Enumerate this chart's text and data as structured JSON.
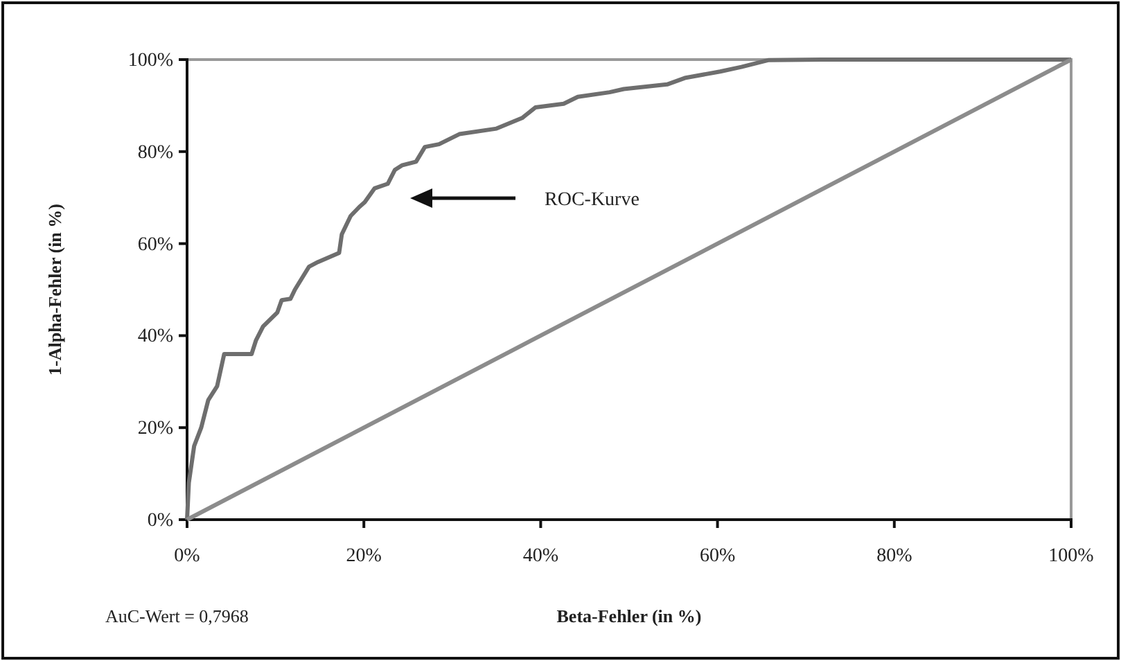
{
  "chart_data": {
    "type": "line",
    "xlabel": "Beta-Fehler (in %)",
    "ylabel": "1-Alpha-Fehler (in %)",
    "xlim": [
      0,
      100
    ],
    "ylim": [
      0,
      100
    ],
    "xticks": [
      {
        "value": 0,
        "label": "0%"
      },
      {
        "value": 20,
        "label": "20%"
      },
      {
        "value": 40,
        "label": "40%"
      },
      {
        "value": 60,
        "label": "60%"
      },
      {
        "value": 80,
        "label": "80%"
      },
      {
        "value": 100,
        "label": "100%"
      }
    ],
    "yticks": [
      {
        "value": 0,
        "label": "0%"
      },
      {
        "value": 20,
        "label": "20%"
      },
      {
        "value": 40,
        "label": "40%"
      },
      {
        "value": 60,
        "label": "60%"
      },
      {
        "value": 80,
        "label": "80%"
      },
      {
        "value": 100,
        "label": "100%"
      }
    ],
    "grid": false,
    "marker": "none",
    "line_style": "solid",
    "series": [
      {
        "color": "#6e6e6e",
        "x": [
          0,
          0.2,
          0.8,
          1.6,
          2.4,
          3.4,
          4.2,
          7.3,
          7.8,
          8.6,
          10.2,
          10.7,
          11.7,
          12.2,
          13.8,
          14.8,
          17.2,
          17.5,
          18.5,
          19.5,
          20.1,
          21.2,
          22.7,
          23.5,
          24.3,
          25.9,
          26.9,
          28.5,
          30.8,
          35,
          37.9,
          39.4,
          42.6,
          44.2,
          47.8,
          49.4,
          54.3,
          56.3,
          60.3,
          62.7,
          65.8,
          71.8,
          100
        ],
        "values": [
          0,
          8,
          16,
          20,
          26,
          29,
          36,
          36,
          39,
          42,
          45,
          47.7,
          48,
          50,
          55,
          56,
          58,
          62,
          66,
          68,
          69,
          72,
          73,
          76,
          77,
          77.8,
          81,
          81.6,
          83.8,
          85,
          87.3,
          89.6,
          90.4,
          91.9,
          92.9,
          93.6,
          94.6,
          96,
          97.4,
          98.4,
          99.9,
          100,
          100
        ]
      },
      {
        "color": "#8c8c8c",
        "x": [
          0,
          100
        ],
        "values": [
          0,
          100
        ]
      }
    ],
    "annotations": [
      "ROC-Kurve",
      "AuC-Wert = 0,7968"
    ]
  }
}
